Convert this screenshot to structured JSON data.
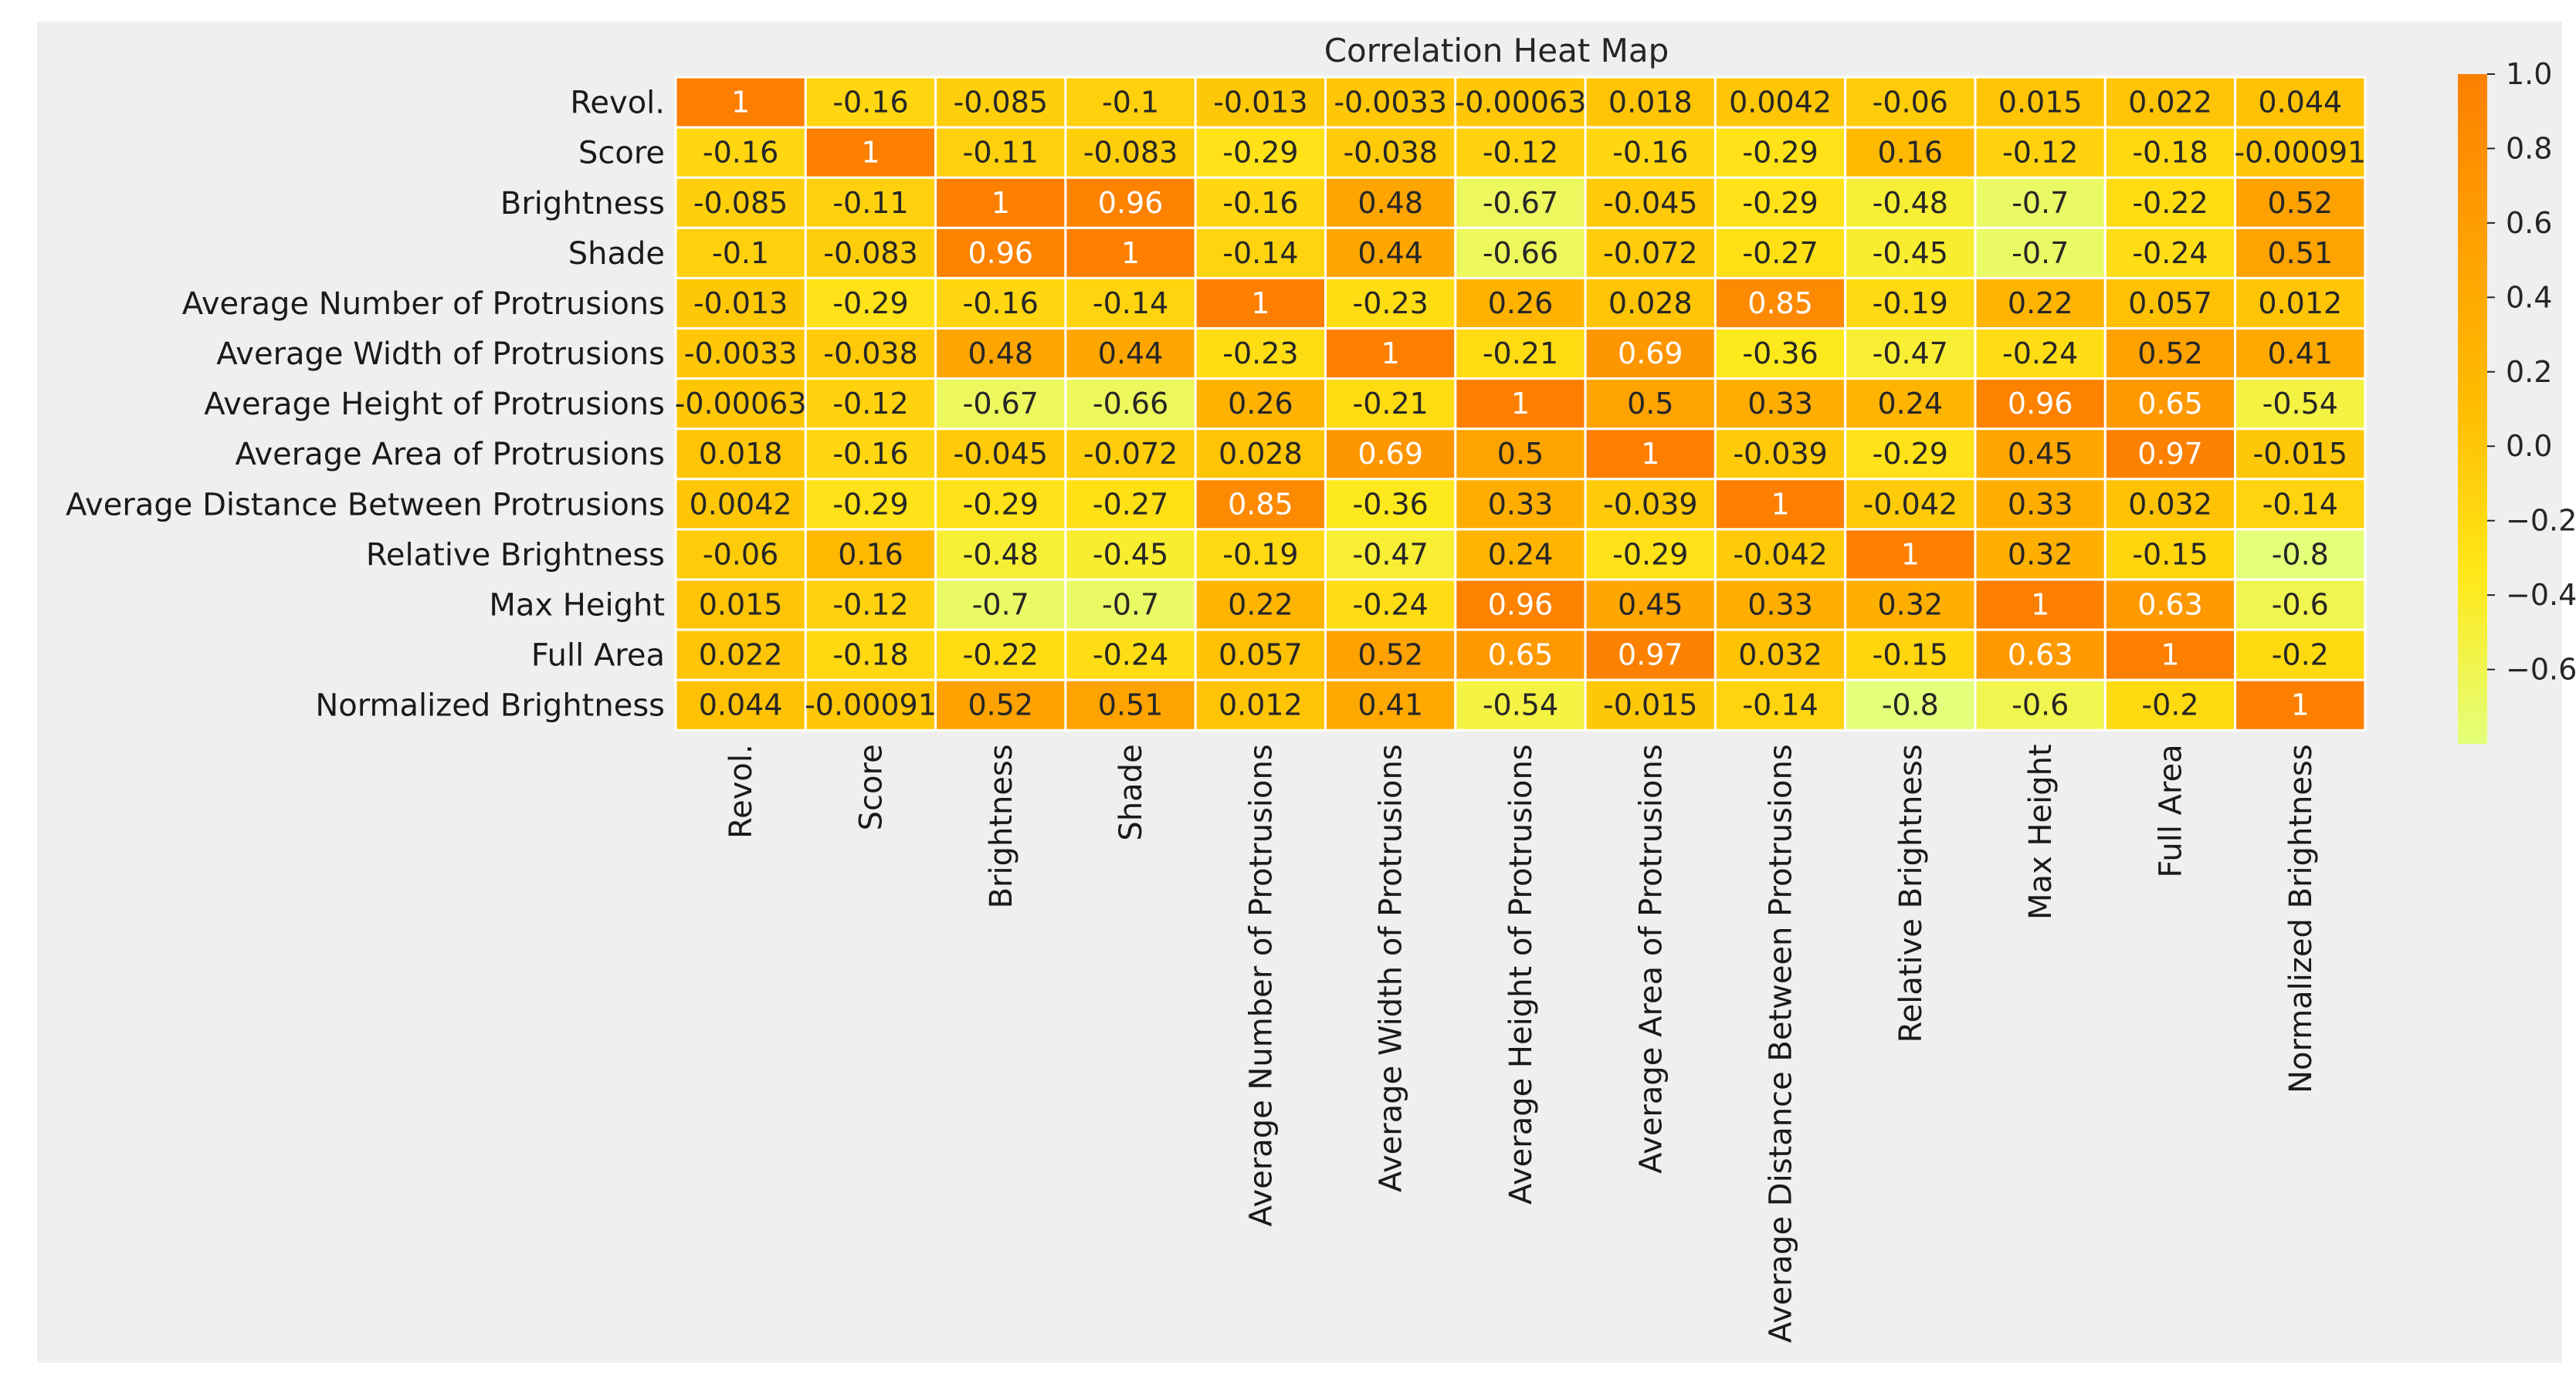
{
  "chart_data": {
    "type": "heatmap",
    "title": "Correlation Heat Map",
    "row_labels": [
      "Revol.",
      "Score",
      "Brightness",
      "Shade",
      "Average Number of Protrusions",
      "Average Width of Protrusions",
      "Average Height of Protrusions",
      "Average Area of Protrusions",
      "Average Distance Between Protrusions",
      "Relative Brightness",
      "Max Height",
      "Full Area",
      "Normalized Brightness"
    ],
    "col_labels": [
      "Revol.",
      "Score",
      "Brightness",
      "Shade",
      "Average Number of Protrusions",
      "Average Width of Protrusions",
      "Average Height of Protrusions",
      "Average Area of Protrusions",
      "Average Distance Between Protrusions",
      "Relative Brightness",
      "Max Height",
      "Full Area",
      "Normalized Brightness"
    ],
    "values": [
      [
        1,
        -0.16,
        -0.085,
        -0.1,
        -0.013,
        -0.0033,
        -0.00063,
        0.018,
        0.0042,
        -0.06,
        0.015,
        0.022,
        0.044
      ],
      [
        -0.16,
        1,
        -0.11,
        -0.083,
        -0.29,
        -0.038,
        -0.12,
        -0.16,
        -0.29,
        0.16,
        -0.12,
        -0.18,
        -0.00091
      ],
      [
        -0.085,
        -0.11,
        1,
        0.96,
        -0.16,
        0.48,
        -0.67,
        -0.045,
        -0.29,
        -0.48,
        -0.7,
        -0.22,
        0.52
      ],
      [
        -0.1,
        -0.083,
        0.96,
        1,
        -0.14,
        0.44,
        -0.66,
        -0.072,
        -0.27,
        -0.45,
        -0.7,
        -0.24,
        0.51
      ],
      [
        -0.013,
        -0.29,
        -0.16,
        -0.14,
        1,
        -0.23,
        0.26,
        0.028,
        0.85,
        -0.19,
        0.22,
        0.057,
        0.012
      ],
      [
        -0.0033,
        -0.038,
        0.48,
        0.44,
        -0.23,
        1,
        -0.21,
        0.69,
        -0.36,
        -0.47,
        -0.24,
        0.52,
        0.41
      ],
      [
        -0.00063,
        -0.12,
        -0.67,
        -0.66,
        0.26,
        -0.21,
        1,
        0.5,
        0.33,
        0.24,
        0.96,
        0.65,
        -0.54
      ],
      [
        0.018,
        -0.16,
        -0.045,
        -0.072,
        0.028,
        0.69,
        0.5,
        1,
        -0.039,
        -0.29,
        0.45,
        0.97,
        -0.015
      ],
      [
        0.0042,
        -0.29,
        -0.29,
        -0.27,
        0.85,
        -0.36,
        0.33,
        -0.039,
        1,
        -0.042,
        0.33,
        0.032,
        -0.14
      ],
      [
        -0.06,
        0.16,
        -0.48,
        -0.45,
        -0.19,
        -0.47,
        0.24,
        -0.29,
        -0.042,
        1,
        0.32,
        -0.15,
        -0.8
      ],
      [
        0.015,
        -0.12,
        -0.7,
        -0.7,
        0.22,
        -0.24,
        0.96,
        0.45,
        0.33,
        0.32,
        1,
        0.63,
        -0.6
      ],
      [
        0.022,
        -0.18,
        -0.22,
        -0.24,
        0.057,
        0.52,
        0.65,
        0.97,
        0.032,
        -0.15,
        0.63,
        1,
        -0.2
      ],
      [
        0.044,
        -0.00091,
        0.52,
        0.51,
        0.012,
        0.41,
        -0.54,
        -0.015,
        -0.14,
        -0.8,
        -0.6,
        -0.2,
        1
      ]
    ],
    "colorbar": {
      "min": -0.8,
      "max": 1.0,
      "ticks": [
        1.0,
        0.8,
        0.6,
        0.4,
        0.2,
        0.0,
        -0.2,
        -0.4,
        -0.6
      ],
      "tick_labels": [
        "1.0",
        "0.8",
        "0.6",
        "0.4",
        "0.2",
        "0.0",
        "−0.2",
        "−0.4",
        "−0.6"
      ],
      "colormap": "Wistia",
      "colors": [
        "#e4ff7a",
        "#ffe81a",
        "#ffbd00",
        "#ffa000",
        "#fc7f00"
      ]
    }
  }
}
